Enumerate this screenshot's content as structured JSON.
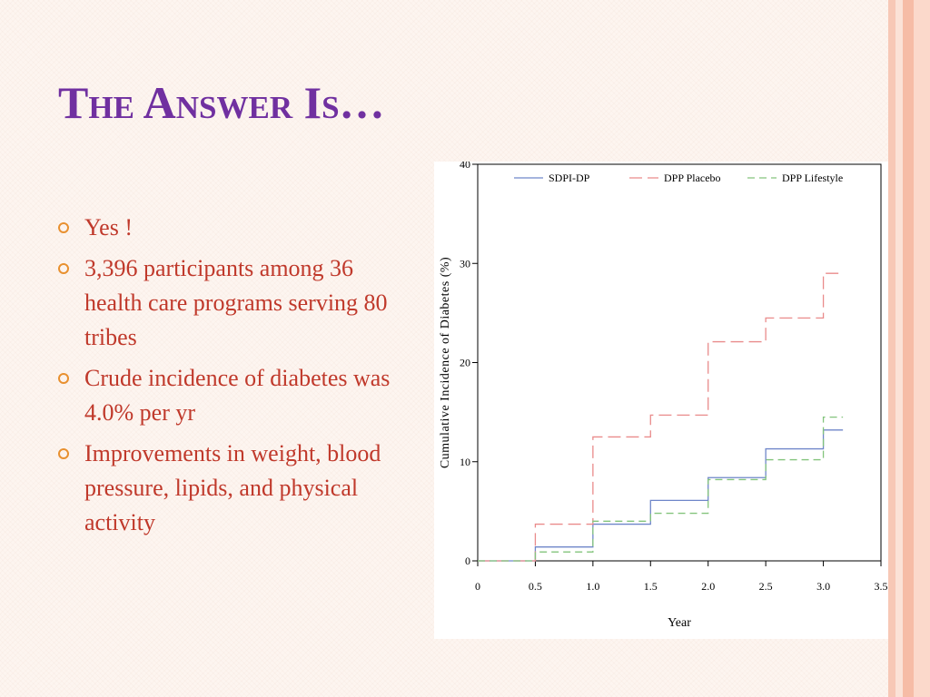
{
  "slide": {
    "title": "The Answer Is…",
    "bullets": [
      "Yes !",
      "3,396 participants among 36 health care programs serving 80 tribes",
      "Crude incidence of diabetes was 4.0% per yr",
      "Improvements in weight, blood pressure, lipids, and physical activity"
    ]
  },
  "colors": {
    "title": "#7030a0",
    "bullet_text": "#c0392b",
    "bullet_marker": "#e8902f",
    "sdpi": "#6f86c9",
    "placebo": "#e98b8b",
    "lifestyle": "#83c47c"
  },
  "chart_data": {
    "type": "line",
    "step": true,
    "xlabel": "Year",
    "ylabel": "Cumulative Incidence of Diabetes (%)",
    "xlim": [
      0,
      3.5
    ],
    "ylim": [
      0,
      40
    ],
    "x_ticks": [
      "0",
      "0.5",
      "1.0",
      "1.5",
      "2.0",
      "2.5",
      "3.0",
      "3.5"
    ],
    "x_tick_values": [
      0,
      0.5,
      1.0,
      1.5,
      2.0,
      2.5,
      3.0,
      3.5
    ],
    "y_ticks": [
      "0",
      "10",
      "20",
      "30",
      "40"
    ],
    "y_tick_values": [
      0,
      10,
      20,
      30,
      40
    ],
    "grid": false,
    "legend_position": "top",
    "series": [
      {
        "name": "SDPI-DP",
        "style": "solid",
        "color": "#6f86c9",
        "x": [
          0,
          0.5,
          1.0,
          1.5,
          2.0,
          2.5,
          3.0,
          3.17
        ],
        "y": [
          0,
          1.4,
          3.7,
          6.1,
          8.4,
          11.3,
          13.2,
          13.2
        ]
      },
      {
        "name": "DPP Placebo",
        "style": "long-dash",
        "color": "#e98b8b",
        "x": [
          0,
          0.5,
          1.0,
          1.5,
          2.0,
          2.5,
          3.0,
          3.17
        ],
        "y": [
          0,
          3.7,
          12.5,
          14.7,
          22.1,
          24.5,
          29.0,
          29.0
        ]
      },
      {
        "name": "DPP Lifestyle",
        "style": "dash",
        "color": "#83c47c",
        "x": [
          0,
          0.5,
          1.0,
          1.5,
          2.0,
          2.5,
          3.0,
          3.17
        ],
        "y": [
          0,
          0.9,
          4.0,
          4.8,
          8.2,
          10.2,
          14.5,
          14.5
        ]
      }
    ]
  }
}
